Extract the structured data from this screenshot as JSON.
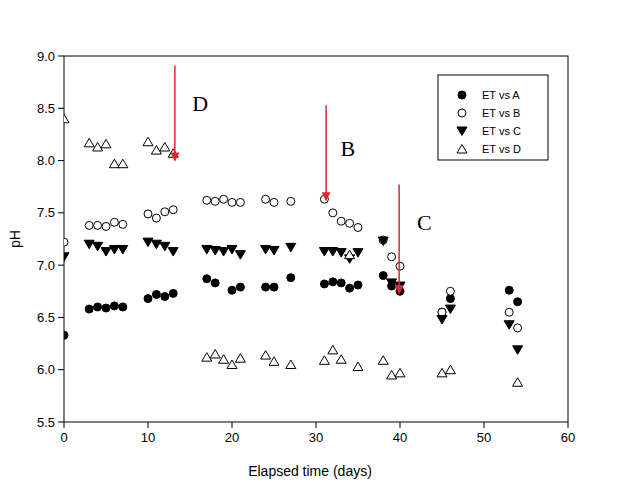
{
  "chart_data": {
    "type": "scatter",
    "x_label": "Elapsed time (days)",
    "y_label": "pH",
    "xlim": [
      0,
      60
    ],
    "ylim": [
      5.5,
      9.0
    ],
    "xticks": [
      0,
      10,
      20,
      30,
      40,
      50,
      60
    ],
    "yticks": [
      {
        "value": 5.5,
        "label": "5.5"
      },
      {
        "value": 6,
        "label": "6.0"
      },
      {
        "value": 6.5,
        "label": "6.5"
      },
      {
        "value": 7,
        "label": "7.0"
      },
      {
        "value": 7.5,
        "label": "7.5"
      },
      {
        "value": 8,
        "label": "8.0"
      },
      {
        "value": 8.5,
        "label": "8.5"
      },
      {
        "value": 9,
        "label": "9.0"
      }
    ],
    "legend": "upper right",
    "series": [
      {
        "name": "ET vs A",
        "color": "#000000",
        "marker": "filled-circle",
        "x": [
          0,
          3,
          4,
          5,
          6,
          7,
          10,
          11,
          12,
          13,
          17,
          18,
          20,
          21,
          24,
          25,
          27,
          31,
          32,
          33,
          34,
          35,
          38,
          39,
          40,
          45,
          46,
          53,
          54
        ],
        "values": [
          6.33,
          6.58,
          6.6,
          6.59,
          6.61,
          6.6,
          6.68,
          6.72,
          6.7,
          6.73,
          6.87,
          6.83,
          6.76,
          6.79,
          6.79,
          6.79,
          6.88,
          6.82,
          6.84,
          6.83,
          6.78,
          6.81,
          6.9,
          6.8,
          6.75,
          6.55,
          6.68,
          6.76,
          6.65
        ]
      },
      {
        "name": "ET vs B",
        "color": "#000000",
        "marker": "open-circle",
        "x": [
          0,
          3,
          4,
          5,
          6,
          7,
          10,
          11,
          12,
          13,
          17,
          18,
          19,
          20,
          21,
          24,
          25,
          27,
          31,
          32,
          33,
          34,
          35,
          38,
          39,
          40,
          45,
          46,
          53,
          54
        ],
        "values": [
          7.22,
          7.38,
          7.38,
          7.37,
          7.41,
          7.39,
          7.49,
          7.45,
          7.51,
          7.53,
          7.62,
          7.61,
          7.63,
          7.6,
          7.6,
          7.63,
          7.6,
          7.61,
          7.63,
          7.5,
          7.42,
          7.4,
          7.36,
          7.24,
          7.08,
          6.99,
          6.55,
          6.75,
          6.55,
          6.4
        ]
      },
      {
        "name": "ET vs C",
        "color": "#000000",
        "marker": "filled-triangle-down",
        "x": [
          0,
          3,
          4,
          5,
          6,
          7,
          10,
          11,
          12,
          13,
          17,
          18,
          19,
          20,
          21,
          24,
          25,
          27,
          31,
          32,
          33,
          34,
          35,
          38,
          39,
          40,
          45,
          46,
          53,
          54
        ],
        "values": [
          7.08,
          7.2,
          7.18,
          7.13,
          7.15,
          7.15,
          7.22,
          7.2,
          7.18,
          7.13,
          7.15,
          7.14,
          7.13,
          7.15,
          7.1,
          7.15,
          7.14,
          7.17,
          7.13,
          7.13,
          7.12,
          7.06,
          7.12,
          7.23,
          6.83,
          6.8,
          6.48,
          6.58,
          6.43,
          6.19
        ]
      },
      {
        "name": "ET vs D",
        "color": "#000000",
        "marker": "open-triangle-up",
        "x": [
          0,
          3,
          4,
          5,
          6,
          7,
          10,
          11,
          12,
          13,
          17,
          18,
          19,
          20,
          21,
          24,
          25,
          27,
          31,
          32,
          33,
          34,
          35,
          38,
          39,
          40,
          45,
          46,
          54
        ],
        "values": [
          8.4,
          8.17,
          8.13,
          8.16,
          7.97,
          7.97,
          8.18,
          8.1,
          8.13,
          8.07,
          6.12,
          6.15,
          6.1,
          6.05,
          6.11,
          6.14,
          6.08,
          6.05,
          6.09,
          6.19,
          6.1,
          7.1,
          6.03,
          6.09,
          5.95,
          5.97,
          5.97,
          6.0,
          5.88
        ]
      }
    ],
    "annotations": [
      {
        "text": "D",
        "x": 16.2,
        "y": 8.55,
        "arrow_x": 13.2,
        "arrow_y": [
          8.91,
          8.0
        ]
      },
      {
        "text": "B",
        "x": 33.8,
        "y": 8.12,
        "arrow_x": 31.2,
        "arrow_y": [
          8.53,
          7.62
        ]
      },
      {
        "text": "C",
        "x": 42.9,
        "y": 7.41,
        "arrow_x": 39.9,
        "arrow_y": [
          7.77,
          6.73
        ]
      }
    ]
  }
}
